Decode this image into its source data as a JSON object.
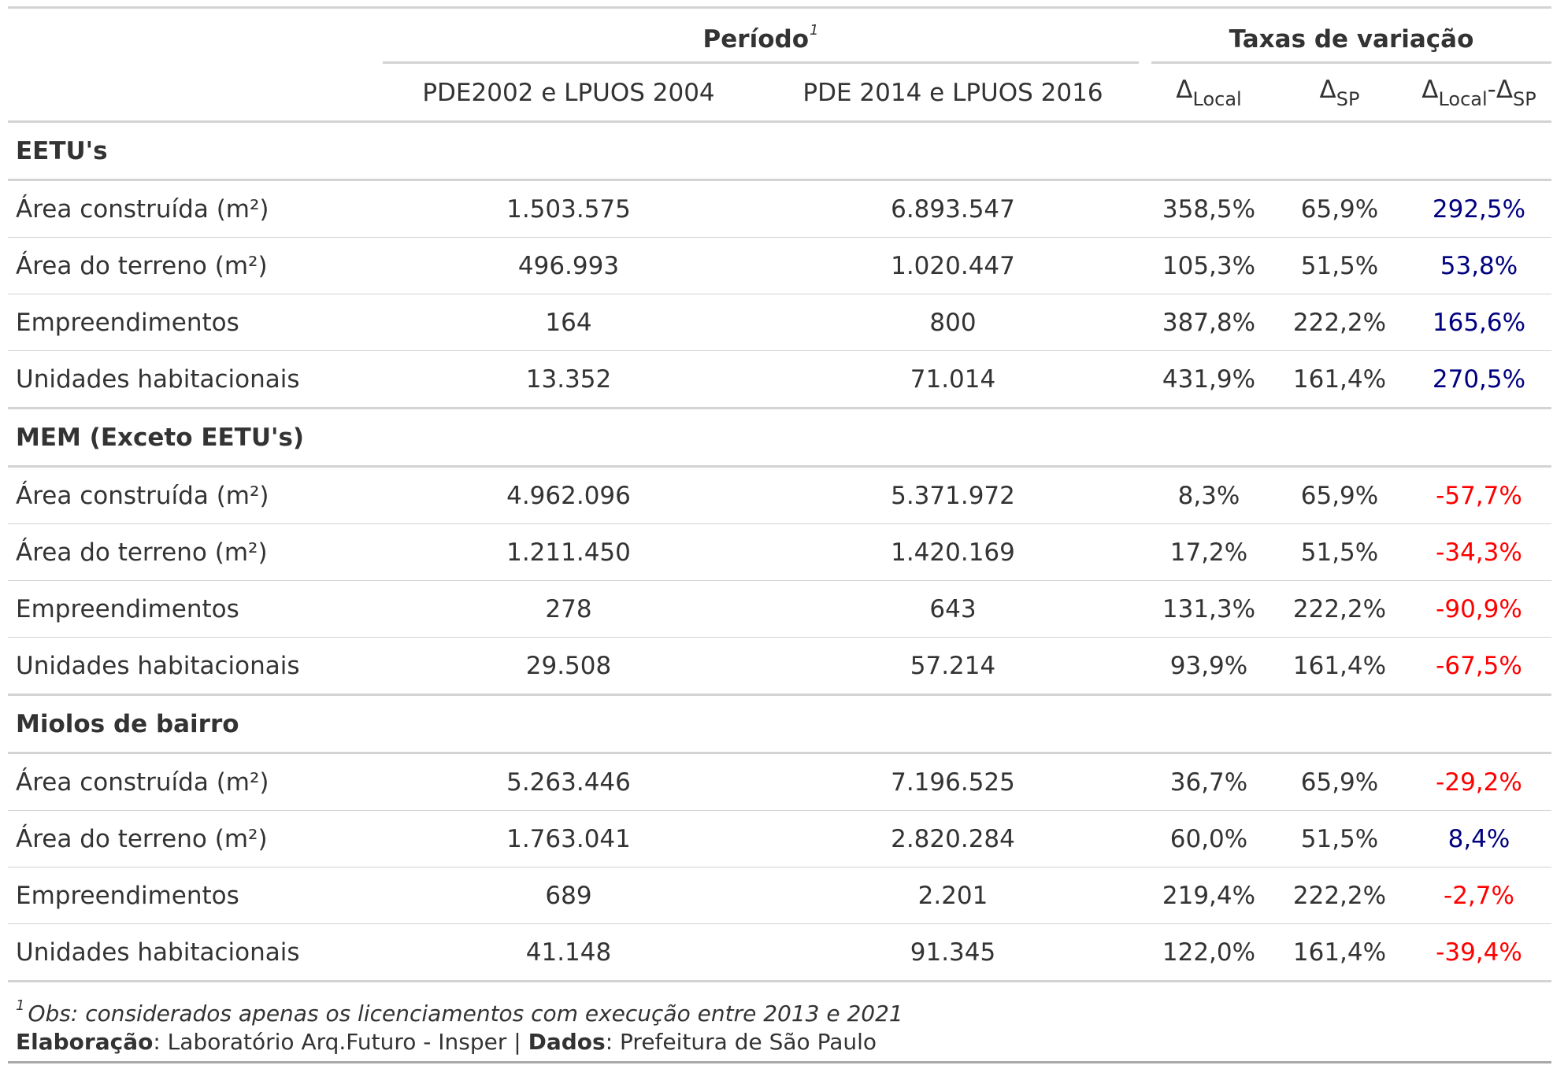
{
  "spanners": {
    "periodo": "Período",
    "periodo_footnote_mark": "1",
    "taxas": "Taxas de variação"
  },
  "columns": {
    "c1": "PDE2002 e LPUOS 2004",
    "c2": "PDE 2014 e LPUOS 2016",
    "delta_symbol": "Δ",
    "local_sub": "Local",
    "sp_sub": "SP",
    "minus": "-"
  },
  "groups": [
    {
      "title": "EETU's",
      "rows": [
        {
          "label": "Área construída (m²)",
          "v1": "1.503.575",
          "v2": "6.893.547",
          "local": "358,5%",
          "sp": "65,9%",
          "diff": "292,5%"
        },
        {
          "label": "Área do terreno (m²)",
          "v1": "496.993",
          "v2": "1.020.447",
          "local": "105,3%",
          "sp": "51,5%",
          "diff": "53,8%"
        },
        {
          "label": "Empreendimentos",
          "v1": "164",
          "v2": "800",
          "local": "387,8%",
          "sp": "222,2%",
          "diff": "165,6%"
        },
        {
          "label": "Unidades habitacionais",
          "v1": "13.352",
          "v2": "71.014",
          "local": "431,9%",
          "sp": "161,4%",
          "diff": "270,5%"
        }
      ]
    },
    {
      "title": "MEM (Exceto EETU's)",
      "rows": [
        {
          "label": "Área construída (m²)",
          "v1": "4.962.096",
          "v2": "5.371.972",
          "local": "8,3%",
          "sp": "65,9%",
          "diff": "-57,7%"
        },
        {
          "label": "Área do terreno (m²)",
          "v1": "1.211.450",
          "v2": "1.420.169",
          "local": "17,2%",
          "sp": "51,5%",
          "diff": "-34,3%"
        },
        {
          "label": "Empreendimentos",
          "v1": "278",
          "v2": "643",
          "local": "131,3%",
          "sp": "222,2%",
          "diff": "-90,9%"
        },
        {
          "label": "Unidades habitacionais",
          "v1": "29.508",
          "v2": "57.214",
          "local": "93,9%",
          "sp": "161,4%",
          "diff": "-67,5%"
        }
      ]
    },
    {
      "title": "Miolos de bairro",
      "rows": [
        {
          "label": "Área construída (m²)",
          "v1": "5.263.446",
          "v2": "7.196.525",
          "local": "36,7%",
          "sp": "65,9%",
          "diff": "-29,2%"
        },
        {
          "label": "Área do terreno (m²)",
          "v1": "1.763.041",
          "v2": "2.820.284",
          "local": "60,0%",
          "sp": "51,5%",
          "diff": "8,4%"
        },
        {
          "label": "Empreendimentos",
          "v1": "689",
          "v2": "2.201",
          "local": "219,4%",
          "sp": "222,2%",
          "diff": "-2,7%"
        },
        {
          "label": "Unidades habitacionais",
          "v1": "41.148",
          "v2": "91.345",
          "local": "122,0%",
          "sp": "161,4%",
          "diff": "-39,4%"
        }
      ]
    }
  ],
  "colors": {
    "positive": "#000080",
    "negative": "#ff0000"
  },
  "footnotes": {
    "mark": "1",
    "obs": "Obs: considerados apenas os licenciamentos com execução entre 2013 e 2021",
    "elaboracao_label": "Elaboração",
    "elaboracao_value": ": Laboratório Arq.Futuro - Insper | ",
    "dados_label": "Dados",
    "dados_value": ": Prefeitura de São Paulo"
  }
}
